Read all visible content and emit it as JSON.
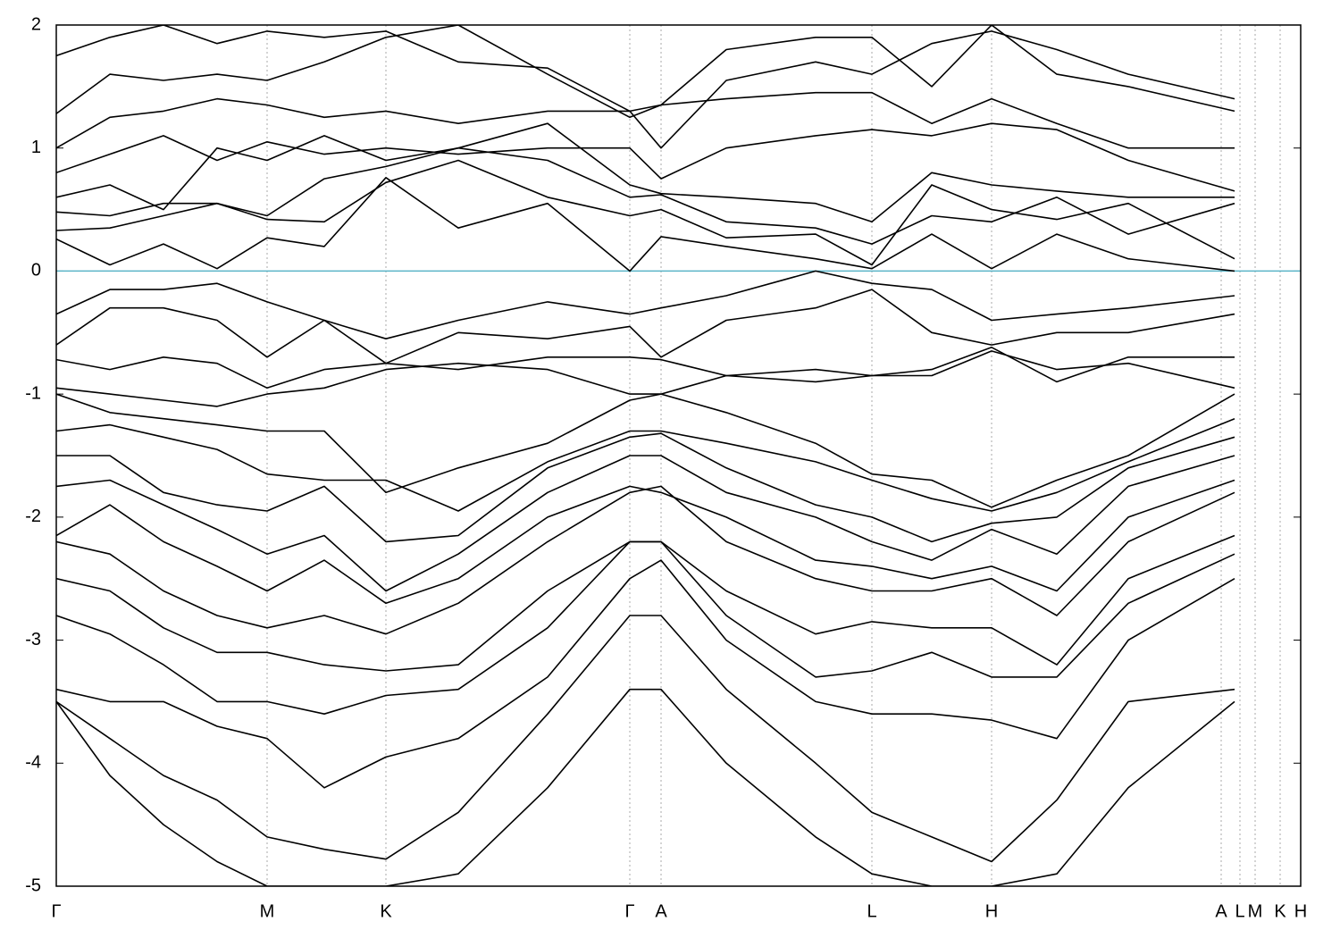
{
  "chart_data": {
    "type": "line",
    "x": [
      0,
      60,
      120,
      180,
      236,
      300,
      369,
      450,
      550,
      642,
      677,
      750,
      850,
      913,
      980,
      1047,
      1120,
      1200,
      1319
    ],
    "xlim": [
      0,
      1393
    ],
    "xticks": [
      {
        "value": 0,
        "label": "Γ"
      },
      {
        "value": 236,
        "label": "M"
      },
      {
        "value": 369,
        "label": "K"
      },
      {
        "value": 642,
        "label": "Γ"
      },
      {
        "value": 677,
        "label": "A"
      },
      {
        "value": 913,
        "label": "L"
      },
      {
        "value": 1047,
        "label": "H"
      },
      {
        "value": 1304,
        "label": "A"
      },
      {
        "value": 1325,
        "label": "L"
      },
      {
        "value": 1342,
        "label": "M"
      },
      {
        "value": 1370,
        "label": "K"
      },
      {
        "value": 1393,
        "label": "H"
      }
    ],
    "ylim": [
      -5,
      2
    ],
    "yticks": [
      -5,
      -4,
      -3,
      -2,
      -1,
      0,
      1,
      2
    ],
    "xgrid": true,
    "line_color": "#000000",
    "fermi_level": 0,
    "fermi_color": "#5ab4c8",
    "series": [
      {
        "values": [
          0.26,
          0.05,
          0.22,
          0.02,
          0.27,
          0.2,
          0.76,
          0.35,
          0.55,
          0.0,
          0.28,
          0.2,
          0.1,
          0.02,
          0.3,
          0.02,
          0.3,
          0.1,
          0.0
        ]
      },
      {
        "values": [
          0.33,
          0.35,
          0.45,
          0.55,
          0.42,
          0.4,
          0.72,
          0.9,
          0.6,
          0.45,
          0.5,
          0.27,
          0.3,
          0.05,
          0.7,
          0.5,
          0.42,
          0.55,
          0.1
        ]
      },
      {
        "values": [
          0.48,
          0.45,
          0.55,
          0.55,
          0.45,
          0.75,
          0.85,
          1.0,
          0.9,
          0.6,
          0.62,
          0.4,
          0.35,
          0.22,
          0.45,
          0.4,
          0.6,
          0.3,
          0.55
        ]
      },
      {
        "values": [
          0.6,
          0.7,
          0.5,
          1.0,
          0.9,
          1.1,
          0.9,
          1.0,
          1.2,
          0.7,
          0.63,
          0.6,
          0.55,
          0.4,
          0.8,
          0.7,
          0.65,
          0.6,
          0.6
        ]
      },
      {
        "values": [
          0.8,
          0.95,
          1.1,
          0.9,
          1.05,
          0.95,
          1.0,
          0.95,
          1.0,
          1.0,
          0.75,
          1.0,
          1.1,
          1.15,
          1.1,
          1.2,
          1.15,
          0.9,
          0.65
        ]
      },
      {
        "values": [
          1.0,
          1.25,
          1.3,
          1.4,
          1.35,
          1.25,
          1.3,
          1.2,
          1.3,
          1.3,
          1.35,
          1.4,
          1.45,
          1.45,
          1.2,
          1.4,
          1.2,
          1.0,
          1.0
        ]
      },
      {
        "values": [
          1.28,
          1.6,
          1.55,
          1.6,
          1.55,
          1.7,
          1.9,
          2.0,
          1.6,
          1.25,
          1.35,
          1.8,
          1.9,
          1.9,
          1.5,
          2.0,
          1.6,
          1.5,
          1.3
        ]
      },
      {
        "values": [
          1.75,
          1.9,
          2.0,
          1.85,
          1.95,
          1.9,
          1.95,
          1.7,
          1.65,
          1.3,
          1.0,
          1.55,
          1.7,
          1.6,
          1.85,
          1.95,
          1.8,
          1.6,
          1.4
        ]
      },
      {
        "values": [
          -0.35,
          -0.15,
          -0.15,
          -0.1,
          -0.25,
          -0.4,
          -0.55,
          -0.4,
          -0.25,
          -0.35,
          -0.3,
          -0.2,
          0.0,
          -0.1,
          -0.15,
          -0.4,
          -0.35,
          -0.3,
          -0.2
        ]
      },
      {
        "values": [
          -0.6,
          -0.3,
          -0.3,
          -0.4,
          -0.7,
          -0.4,
          -0.75,
          -0.5,
          -0.55,
          -0.45,
          -0.7,
          -0.4,
          -0.3,
          -0.15,
          -0.5,
          -0.6,
          -0.5,
          -0.5,
          -0.35
        ]
      },
      {
        "values": [
          -0.72,
          -0.8,
          -0.7,
          -0.75,
          -0.95,
          -0.8,
          -0.75,
          -0.8,
          -0.7,
          -0.7,
          -0.72,
          -0.85,
          -0.8,
          -0.85,
          -0.8,
          -0.62,
          -0.9,
          -0.7,
          -0.7
        ]
      },
      {
        "values": [
          -0.95,
          -1.0,
          -1.05,
          -1.1,
          -1.0,
          -0.95,
          -0.8,
          -0.75,
          -0.8,
          -1.0,
          -1.0,
          -0.85,
          -0.9,
          -0.85,
          -0.85,
          -0.65,
          -0.8,
          -0.75,
          -0.95
        ]
      },
      {
        "values": [
          -1.0,
          -1.15,
          -1.2,
          -1.25,
          -1.3,
          -1.3,
          -1.8,
          -1.6,
          -1.4,
          -1.05,
          -1.0,
          -1.15,
          -1.4,
          -1.65,
          -1.7,
          -1.92,
          -1.7,
          -1.5,
          -1.0
        ]
      },
      {
        "values": [
          -1.3,
          -1.25,
          -1.35,
          -1.45,
          -1.65,
          -1.7,
          -1.7,
          -1.95,
          -1.55,
          -1.3,
          -1.3,
          -1.4,
          -1.55,
          -1.7,
          -1.85,
          -1.95,
          -1.8,
          -1.55,
          -1.2
        ]
      },
      {
        "values": [
          -1.5,
          -1.5,
          -1.8,
          -1.9,
          -1.95,
          -1.75,
          -2.2,
          -2.15,
          -1.6,
          -1.35,
          -1.32,
          -1.6,
          -1.9,
          -2.0,
          -2.2,
          -2.05,
          -2.0,
          -1.6,
          -1.35
        ]
      },
      {
        "values": [
          -1.75,
          -1.7,
          -1.9,
          -2.1,
          -2.3,
          -2.15,
          -2.6,
          -2.3,
          -1.8,
          -1.5,
          -1.5,
          -1.8,
          -2.0,
          -2.2,
          -2.35,
          -2.1,
          -2.3,
          -1.75,
          -1.5
        ]
      },
      {
        "values": [
          -2.15,
          -1.9,
          -2.2,
          -2.4,
          -2.6,
          -2.35,
          -2.7,
          -2.5,
          -2.0,
          -1.75,
          -1.8,
          -2.0,
          -2.35,
          -2.4,
          -2.5,
          -2.4,
          -2.6,
          -2.0,
          -1.7
        ]
      },
      {
        "values": [
          -2.2,
          -2.3,
          -2.6,
          -2.8,
          -2.9,
          -2.8,
          -2.95,
          -2.7,
          -2.2,
          -1.8,
          -1.75,
          -2.2,
          -2.5,
          -2.6,
          -2.6,
          -2.5,
          -2.8,
          -2.2,
          -1.8
        ]
      },
      {
        "values": [
          -2.5,
          -2.6,
          -2.9,
          -3.1,
          -3.1,
          -3.2,
          -3.25,
          -3.2,
          -2.6,
          -2.2,
          -2.2,
          -2.6,
          -2.95,
          -2.85,
          -2.9,
          -2.9,
          -3.2,
          -2.5,
          -2.15
        ]
      },
      {
        "values": [
          -2.8,
          -2.95,
          -3.2,
          -3.5,
          -3.5,
          -3.6,
          -3.45,
          -3.4,
          -2.9,
          -2.2,
          -2.2,
          -2.8,
          -3.3,
          -3.25,
          -3.1,
          -3.3,
          -3.3,
          -2.7,
          -2.3
        ]
      },
      {
        "values": [
          -3.4,
          -3.5,
          -3.5,
          -3.7,
          -3.8,
          -4.2,
          -3.95,
          -3.8,
          -3.3,
          -2.5,
          -2.35,
          -3.0,
          -3.5,
          -3.6,
          -3.6,
          -3.65,
          -3.8,
          -3.0,
          -2.5
        ]
      },
      {
        "values": [
          -3.5,
          -3.8,
          -4.1,
          -4.3,
          -4.6,
          -4.7,
          -4.78,
          -4.4,
          -3.6,
          -2.8,
          -2.8,
          -3.4,
          -4.0,
          -4.4,
          -4.6,
          -4.8,
          -4.3,
          -3.5,
          -3.4
        ]
      },
      {
        "values": [
          -3.5,
          -4.1,
          -4.5,
          -4.8,
          -5.0,
          -5.0,
          -5.0,
          -4.9,
          -4.2,
          -3.4,
          -3.4,
          -4.0,
          -4.6,
          -4.9,
          -5.0,
          -5.0,
          -4.9,
          -4.2,
          -3.5
        ]
      }
    ]
  }
}
